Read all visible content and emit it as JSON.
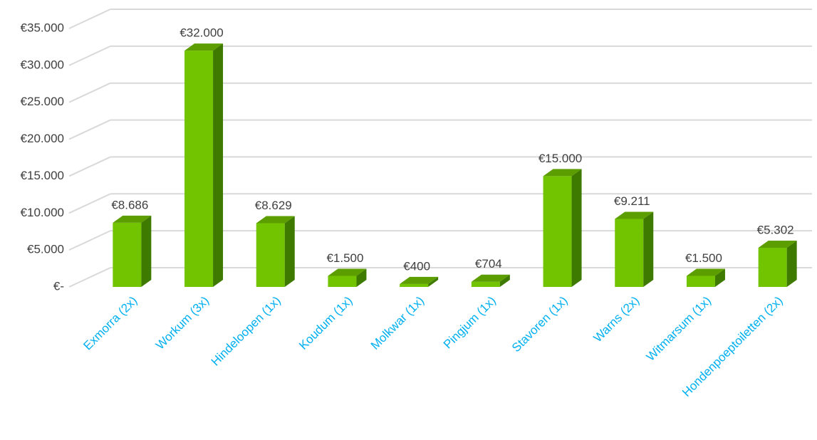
{
  "chart_data": {
    "type": "bar3d",
    "categories": [
      "Exmorra (2x)",
      "Workum (3x)",
      "Hindeloopen (1x)",
      "Koudum (1x)",
      "Molkwar (1x)",
      "Pingjum (1x)",
      "Stavoren (1x)",
      "Warns (2x)",
      "Witmarsum (1x)",
      "Hondenpoeptoiletten (2x)"
    ],
    "values": [
      8686,
      32000,
      8629,
      1500,
      400,
      704,
      15000,
      9211,
      1500,
      5302
    ],
    "value_labels": [
      "€8.686",
      "€32.000",
      "€8.629",
      "€1.500",
      "€400",
      "€704",
      "€15.000",
      "€9.211",
      "€1.500",
      "€5.302"
    ],
    "color": "#72c300",
    "ylim": [
      0,
      35000
    ],
    "yticks": [
      {
        "value": 0,
        "label": "€-"
      },
      {
        "value": 5000,
        "label": "€5.000"
      },
      {
        "value": 10000,
        "label": "€10.000"
      },
      {
        "value": 15000,
        "label": "€15.000"
      },
      {
        "value": 20000,
        "label": "€20.000"
      },
      {
        "value": 25000,
        "label": "€25.000"
      },
      {
        "value": 30000,
        "label": "€30.000"
      },
      {
        "value": 35000,
        "label": "€35.000"
      }
    ],
    "grid": true
  }
}
